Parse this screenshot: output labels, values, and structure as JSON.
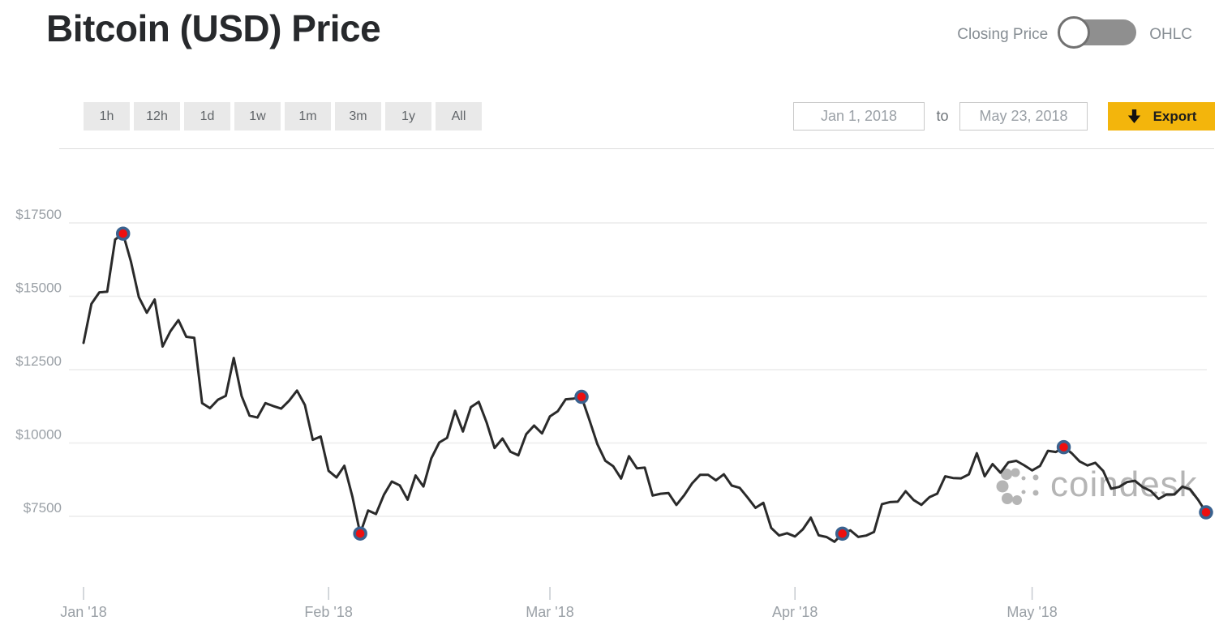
{
  "header": {
    "title": "Bitcoin (USD) Price",
    "toggle": {
      "left_label": "Closing Price",
      "right_label": "OHLC",
      "state": "left"
    }
  },
  "controls": {
    "range_buttons": [
      "1h",
      "12h",
      "1d",
      "1w",
      "1m",
      "3m",
      "1y",
      "All"
    ],
    "date_from": "Jan 1, 2018",
    "to_label": "to",
    "date_to": "May 23, 2018",
    "export_label": "Export"
  },
  "watermark": {
    "text": "coindesk"
  },
  "colors": {
    "accent_yellow": "#f3b50c",
    "line": "#2a2a2a",
    "marker_fill": "#ee0f0f",
    "marker_ring": "#3a628f",
    "grid": "#ececec",
    "tick": "#c6cbd0",
    "axis_text": "#9aa0a6",
    "watermark": "#b5b5b5"
  },
  "chart_data": {
    "type": "line",
    "title": "Bitcoin (USD) Price",
    "x_unit": "day",
    "start_date": "Jan 1, 2018",
    "end_date": "May 23, 2018",
    "x_tick_labels": [
      "Jan '18",
      "Feb '18",
      "Mar '18",
      "Apr '18",
      "May '18"
    ],
    "x_tick_days": [
      0,
      31,
      59,
      90,
      120
    ],
    "y_tick_labels": [
      "$17500",
      "$15000",
      "$12500",
      "$10000",
      "$7500"
    ],
    "y_tick_values": [
      17500,
      15000,
      12500,
      10000,
      7500
    ],
    "ylim": [
      6400,
      17800
    ],
    "grid": true,
    "legend": false,
    "series": [
      {
        "name": "BTC/USD closing price",
        "values": [
          13412,
          14740,
          15134,
          15155,
          16937,
          17135,
          16178,
          14970,
          14439,
          14890,
          13287,
          13812,
          14188,
          13619,
          13585,
          11358,
          11188,
          11474,
          11607,
          12899,
          11600,
          10931,
          10868,
          11359,
          11259,
          11171,
          11440,
          11786,
          11296,
          10107,
          10221,
          9052,
          8827,
          9224,
          8186,
          6914,
          7700,
          7581,
          8237,
          8689,
          8556,
          8070,
          8891,
          8516,
          9477,
          10016,
          10178,
          11097,
          10391,
          11225,
          11403,
          10690,
          9830,
          10151,
          9704,
          9580,
          10301,
          10594,
          10326,
          10907,
          11087,
          11489,
          11513,
          11573,
          10779,
          9965,
          9395,
          9209,
          8787,
          9549,
          9139,
          9159,
          8210,
          8270,
          8296,
          7890,
          8223,
          8630,
          8913,
          8918,
          8728,
          8935,
          8550,
          8473,
          8145,
          7790,
          7960,
          7106,
          6849,
          6926,
          6816,
          7057,
          7457,
          6853,
          6796,
          6636,
          6911,
          7026,
          6797,
          6845,
          6968,
          7916,
          7986,
          8000,
          8355,
          8058,
          7892,
          8152,
          8274,
          8866,
          8808,
          8795,
          8930,
          9653,
          8864,
          9281,
          8987,
          9343,
          9392,
          9240,
          9067,
          9219,
          9734,
          9692,
          9858,
          9654,
          9373,
          9234,
          9325,
          9043,
          8441,
          8504,
          8669,
          8713,
          8495,
          8368,
          8094,
          8250,
          8247,
          8513,
          8418,
          8061,
          7638
        ]
      }
    ],
    "markers": [
      {
        "index": 5,
        "date": "Jan 6, 2018",
        "value": 17135
      },
      {
        "index": 35,
        "date": "Feb 5, 2018",
        "value": 6914
      },
      {
        "index": 63,
        "date": "Mar 5, 2018",
        "value": 11573
      },
      {
        "index": 96,
        "date": "Apr 7, 2018",
        "value": 6911
      },
      {
        "index": 124,
        "date": "May 5, 2018",
        "value": 9858
      },
      {
        "index": 142,
        "date": "May 23, 2018",
        "value": 7638
      }
    ]
  }
}
